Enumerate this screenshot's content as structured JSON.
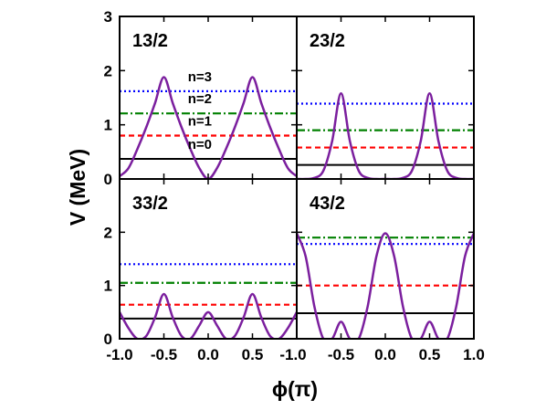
{
  "chart_data": {
    "type": "line",
    "layout": "2x2 panels, shared axes",
    "ylabel": "V (MeV)",
    "xlabel": "ϕ(π)",
    "xlim": [
      -1.0,
      1.0
    ],
    "ylim": [
      0,
      3
    ],
    "xticks": [
      "-1.0",
      "-0.5",
      "0.0",
      "0.5",
      "1.0"
    ],
    "yticks_top": [
      "0",
      "1",
      "2",
      "3"
    ],
    "yticks_bottom": [
      "0",
      "1",
      "2"
    ],
    "colors": {
      "potential": "#7b1f9e",
      "n0": "#000000",
      "n1": "#ff0000",
      "n2": "#008000",
      "n3": "#0000ff"
    },
    "panels": [
      {
        "label": "13/2",
        "potential": {
          "x": [
            -1.0,
            -0.9,
            -0.8,
            -0.7,
            -0.6,
            -0.5,
            -0.4,
            -0.3,
            -0.2,
            -0.1,
            0.0,
            0.1,
            0.2,
            0.3,
            0.4,
            0.5,
            0.6,
            0.7,
            0.8,
            0.9,
            1.0
          ],
          "y": [
            0.05,
            0.2,
            0.55,
            0.95,
            1.4,
            1.88,
            1.4,
            0.95,
            0.55,
            0.2,
            0.0,
            0.2,
            0.55,
            0.95,
            1.4,
            1.88,
            1.4,
            0.95,
            0.55,
            0.2,
            0.05
          ]
        },
        "levels": [
          {
            "name": "n=0",
            "value": 0.37,
            "style": "solid"
          },
          {
            "name": "n=1",
            "value": 0.8,
            "style": "dashed"
          },
          {
            "name": "n=2",
            "value": 1.21,
            "style": "dashdot"
          },
          {
            "name": "n=3",
            "value": 1.62,
            "style": "dotted"
          }
        ],
        "annotations": [
          "n=3",
          "n=2",
          "n=1",
          "n=0"
        ]
      },
      {
        "label": "23/2",
        "potential": {
          "x": [
            -1.0,
            -0.9,
            -0.8,
            -0.7,
            -0.6,
            -0.5,
            -0.4,
            -0.3,
            -0.2,
            -0.1,
            0.0,
            0.1,
            0.2,
            0.3,
            0.4,
            0.5,
            0.6,
            0.7,
            0.8,
            0.9,
            1.0
          ],
          "y": [
            0.0,
            0.0,
            0.02,
            0.15,
            0.7,
            1.58,
            0.7,
            0.15,
            0.02,
            0.0,
            0.0,
            0.0,
            0.02,
            0.15,
            0.7,
            1.58,
            0.7,
            0.15,
            0.02,
            0.0,
            0.0
          ]
        },
        "levels": [
          {
            "name": "n=0",
            "value": 0.26,
            "style": "solid"
          },
          {
            "name": "n=1",
            "value": 0.58,
            "style": "dashed"
          },
          {
            "name": "n=2",
            "value": 0.9,
            "style": "dashdot"
          },
          {
            "name": "n=3",
            "value": 1.39,
            "style": "dotted"
          }
        ]
      },
      {
        "label": "33/2",
        "potential": {
          "x": [
            -1.0,
            -0.9,
            -0.8,
            -0.7,
            -0.6,
            -0.5,
            -0.4,
            -0.3,
            -0.2,
            -0.1,
            0.0,
            0.1,
            0.2,
            0.3,
            0.4,
            0.5,
            0.6,
            0.7,
            0.8,
            0.9,
            1.0
          ],
          "y": [
            0.5,
            0.2,
            0.0,
            0.05,
            0.4,
            0.84,
            0.4,
            0.05,
            0.0,
            0.25,
            0.5,
            0.25,
            0.0,
            0.05,
            0.4,
            0.84,
            0.4,
            0.05,
            0.0,
            0.2,
            0.5
          ]
        },
        "levels": [
          {
            "name": "n=0",
            "value": 0.38,
            "style": "solid"
          },
          {
            "name": "n=1",
            "value": 0.64,
            "style": "dashed"
          },
          {
            "name": "n=2",
            "value": 1.05,
            "style": "dashdot"
          },
          {
            "name": "n=3",
            "value": 1.4,
            "style": "dotted"
          }
        ]
      },
      {
        "label": "43/2",
        "potential": {
          "x": [
            -1.0,
            -0.9,
            -0.8,
            -0.7,
            -0.6,
            -0.5,
            -0.4,
            -0.3,
            -0.2,
            -0.1,
            0.0,
            0.1,
            0.2,
            0.3,
            0.4,
            0.5,
            0.6,
            0.7,
            0.8,
            0.9,
            1.0
          ],
          "y": [
            1.98,
            1.55,
            0.6,
            0.0,
            0.0,
            0.32,
            0.0,
            0.0,
            0.6,
            1.55,
            1.98,
            1.55,
            0.6,
            0.0,
            0.0,
            0.32,
            0.0,
            0.0,
            0.6,
            1.55,
            1.98
          ]
        },
        "levels": [
          {
            "name": "n=0",
            "value": 0.48,
            "style": "solid"
          },
          {
            "name": "n=1",
            "value": 1.0,
            "style": "dashed"
          },
          {
            "name": "n=2",
            "value": 1.9,
            "style": "dashdot"
          },
          {
            "name": "n=3",
            "value": 1.78,
            "style": "dotted"
          }
        ]
      }
    ]
  }
}
